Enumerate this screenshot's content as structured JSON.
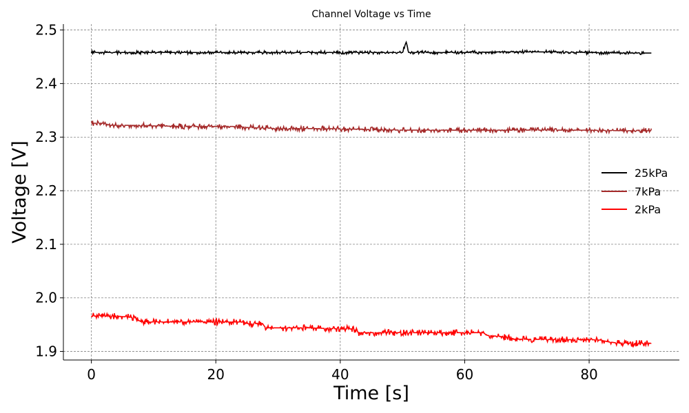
{
  "chart_data": {
    "type": "line",
    "title": "Channel Voltage vs Time",
    "xlabel": "Time [s]",
    "ylabel": "Voltage [V]",
    "xlim": [
      -4.5,
      94.5
    ],
    "ylim": [
      1.884,
      2.511
    ],
    "xticks": [
      0,
      20,
      40,
      60,
      80
    ],
    "yticks": [
      1.9,
      2.0,
      2.1,
      2.2,
      2.3,
      2.4,
      2.5
    ],
    "xtick_labels": [
      "0",
      "20",
      "40",
      "60",
      "80"
    ],
    "ytick_labels": [
      "1.9",
      "2.0",
      "2.1",
      "2.2",
      "2.3",
      "2.4",
      "2.5"
    ],
    "grid": true,
    "legend_position": "center-right",
    "series": [
      {
        "name": "25kPa",
        "color": "#000000",
        "x": [
          0,
          5,
          10,
          15,
          20,
          25,
          30,
          35,
          40,
          45,
          50,
          50.6,
          51,
          55,
          60,
          65,
          70,
          75,
          80,
          85,
          90
        ],
        "y": [
          2.458,
          2.458,
          2.458,
          2.458,
          2.458,
          2.458,
          2.458,
          2.458,
          2.458,
          2.458,
          2.458,
          2.478,
          2.458,
          2.458,
          2.458,
          2.459,
          2.459,
          2.459,
          2.458,
          2.457,
          2.457
        ],
        "noise": 0.003
      },
      {
        "name": "7kPa",
        "color": "#a52a2a",
        "x": [
          0,
          2,
          3,
          5,
          8,
          10,
          15,
          20,
          24,
          25,
          28,
          30,
          35,
          38,
          40,
          42,
          45,
          50,
          55,
          60,
          65,
          70,
          75,
          80,
          85,
          90
        ],
        "y": [
          2.326,
          2.326,
          2.322,
          2.322,
          2.322,
          2.321,
          2.32,
          2.32,
          2.32,
          2.318,
          2.317,
          2.316,
          2.316,
          2.316,
          2.315,
          2.315,
          2.314,
          2.313,
          2.313,
          2.313,
          2.313,
          2.313,
          2.313,
          2.313,
          2.312,
          2.312
        ],
        "noise": 0.005
      },
      {
        "name": "2kPa",
        "color": "#ff0000",
        "x": [
          0,
          4,
          7,
          8,
          15,
          20,
          24.5,
          25,
          27.5,
          28,
          35,
          40,
          42,
          43,
          50,
          55,
          60,
          63,
          63.5,
          67,
          68,
          75,
          80,
          82,
          83,
          85,
          90
        ],
        "y": [
          1.966,
          1.966,
          1.963,
          1.955,
          1.955,
          1.955,
          1.955,
          1.952,
          1.952,
          1.944,
          1.944,
          1.942,
          1.942,
          1.935,
          1.935,
          1.935,
          1.935,
          1.935,
          1.93,
          1.927,
          1.923,
          1.922,
          1.922,
          1.921,
          1.918,
          1.915,
          1.915
        ],
        "noise": 0.006
      }
    ]
  }
}
